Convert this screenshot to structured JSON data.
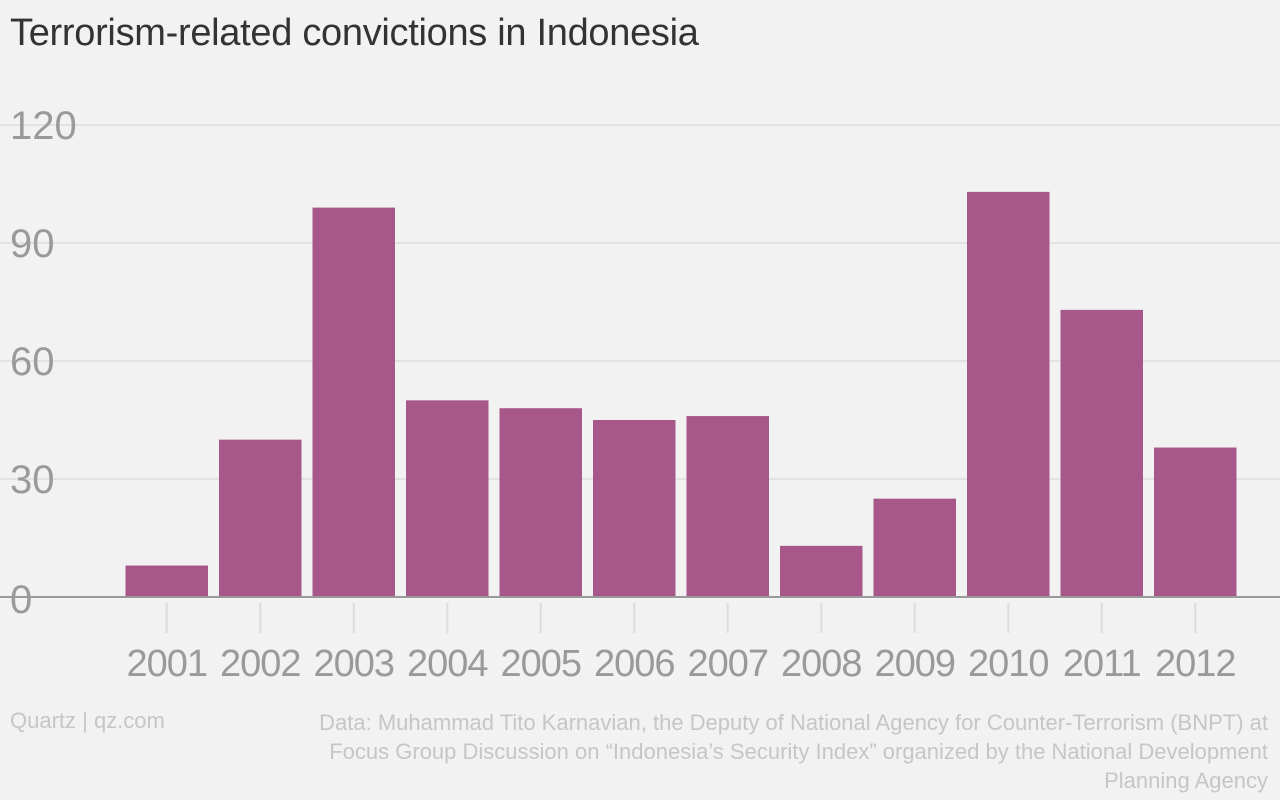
{
  "header": {
    "title": "Terrorism-related convictions in Indonesia"
  },
  "footer": {
    "credit": "Quartz | qz.com",
    "source": "Data: Muhammad Tito Karnavian, the Deputy of National Agency for Counter-Terrorism (BNPT) at Focus Group Discussion on “Indonesia’s Security Index” organized by the National Development Planning Agency"
  },
  "chart_data": {
    "type": "bar",
    "title": "Terrorism-related convictions in Indonesia",
    "xlabel": "",
    "ylabel": "",
    "categories": [
      "2001",
      "2002",
      "2003",
      "2004",
      "2005",
      "2006",
      "2007",
      "2008",
      "2009",
      "2010",
      "2011",
      "2012"
    ],
    "values": [
      8,
      40,
      99,
      50,
      48,
      45,
      46,
      13,
      25,
      103,
      73,
      38
    ],
    "ylim": [
      0,
      120
    ],
    "yticks": [
      0,
      30,
      60,
      90,
      120
    ],
    "grid": true,
    "legend": "none",
    "bar_color": "#a8578a"
  }
}
